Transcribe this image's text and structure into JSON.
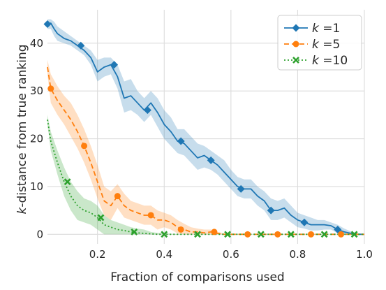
{
  "chart_data": {
    "type": "line",
    "xlabel": "Fraction of comparisons used",
    "ylabel_prefix": "k",
    "ylabel_suffix": "-distance from true ranking",
    "xlim": [
      0.05,
      1.0
    ],
    "ylim": [
      -2,
      47
    ],
    "x_ticks": [
      0.2,
      0.4,
      0.6,
      0.8,
      1.0
    ],
    "x_tick_labels": [
      "0.2",
      "0.4",
      "0.6",
      "0.8",
      "1.0"
    ],
    "y_ticks": [
      0,
      10,
      20,
      30,
      40
    ],
    "y_tick_labels": [
      "0",
      "10",
      "20",
      "30",
      "40"
    ],
    "grid": true,
    "legend_position": "top-right",
    "series": [
      {
        "name": "k =1",
        "legend_k": "k",
        "legend_rest": " =1",
        "color": "#1f77b4",
        "line_style": "solid",
        "marker": "diamond",
        "x": [
          0.05,
          0.06,
          0.07,
          0.08,
          0.1,
          0.12,
          0.14,
          0.16,
          0.18,
          0.2,
          0.22,
          0.24,
          0.26,
          0.28,
          0.3,
          0.32,
          0.34,
          0.36,
          0.38,
          0.4,
          0.42,
          0.44,
          0.46,
          0.48,
          0.5,
          0.52,
          0.54,
          0.56,
          0.58,
          0.6,
          0.62,
          0.64,
          0.66,
          0.68,
          0.7,
          0.72,
          0.74,
          0.76,
          0.78,
          0.8,
          0.82,
          0.84,
          0.86,
          0.88,
          0.9,
          0.92,
          0.94,
          0.96,
          0.98,
          1.0
        ],
        "y": [
          44,
          44.2,
          43,
          42,
          41,
          40.5,
          39.5,
          38.5,
          37,
          34,
          35,
          35.5,
          33,
          28.5,
          29,
          27.5,
          26,
          27.5,
          25.5,
          23,
          21.5,
          19.5,
          19,
          17.5,
          16,
          16.5,
          15.5,
          14.5,
          13,
          11.5,
          10,
          9.5,
          9.5,
          8,
          7,
          5,
          5,
          5.5,
          4,
          3,
          2.5,
          2,
          2,
          2,
          1.8,
          1,
          0.5,
          0.2,
          0,
          0
        ],
        "band_upper": [
          45,
          45,
          44.5,
          43.5,
          42.5,
          41.5,
          40.5,
          39.5,
          38.5,
          36.5,
          37,
          37,
          35.5,
          32,
          32.5,
          30,
          28.5,
          30,
          28.5,
          26,
          24.5,
          22,
          22,
          20.5,
          19,
          18.5,
          17.5,
          16.5,
          15.5,
          13.5,
          12,
          11.5,
          11.5,
          10,
          9,
          7.5,
          7,
          7.5,
          6,
          4.5,
          4,
          3.5,
          3,
          3,
          2.5,
          2,
          1.2,
          0.6,
          0.2,
          0.1
        ],
        "band_lower": [
          43,
          43,
          41.5,
          40.5,
          40,
          39.5,
          38.5,
          37.5,
          35.5,
          32,
          33,
          33.5,
          30.5,
          25.5,
          26,
          25,
          23.5,
          25,
          22.5,
          20,
          18.5,
          17,
          16.5,
          15,
          13.5,
          14,
          13.5,
          12.5,
          11,
          9.5,
          8,
          7.5,
          7.5,
          6,
          5,
          3,
          3,
          3.5,
          2.5,
          1.5,
          1.2,
          0.8,
          0.8,
          1,
          1,
          0.2,
          0,
          0,
          0,
          0
        ],
        "marker_x": [
          0.05,
          0.15,
          0.25,
          0.35,
          0.45,
          0.54,
          0.63,
          0.72,
          0.82,
          0.92
        ],
        "marker_y": [
          44,
          39.5,
          35.5,
          26,
          19.5,
          15.5,
          9.5,
          5,
          2.5,
          1
        ]
      },
      {
        "name": "k =5",
        "legend_k": "k",
        "legend_rest": " =5",
        "color": "#ff7f0e",
        "line_style": "dashed",
        "marker": "circle",
        "x": [
          0.05,
          0.06,
          0.08,
          0.1,
          0.12,
          0.14,
          0.16,
          0.18,
          0.2,
          0.22,
          0.24,
          0.26,
          0.28,
          0.3,
          0.32,
          0.34,
          0.36,
          0.38,
          0.4,
          0.42,
          0.44,
          0.46,
          0.48,
          0.5,
          0.52,
          0.54,
          0.56,
          0.58,
          0.6,
          0.65,
          0.7,
          0.75,
          0.8,
          0.85,
          0.9,
          0.95,
          1.0
        ],
        "y": [
          35,
          30.5,
          28,
          26,
          24,
          21.5,
          18.5,
          15,
          11,
          7,
          6,
          8,
          6,
          5,
          4.5,
          4,
          4,
          3,
          3,
          2.5,
          1.5,
          1,
          0.5,
          0.5,
          0.3,
          0.5,
          0.2,
          0,
          0,
          0,
          0,
          0,
          0,
          0,
          0,
          0,
          0
        ],
        "band_upper": [
          36.5,
          33.5,
          31,
          29,
          27.5,
          25,
          22,
          18.5,
          14.5,
          10,
          9,
          10.5,
          8.5,
          7,
          6.5,
          6,
          6,
          5,
          4.5,
          4,
          3,
          2.2,
          1.5,
          1.2,
          1,
          1,
          0.5,
          0.2,
          0.1,
          0,
          0,
          0,
          0,
          0,
          0,
          0,
          0
        ],
        "band_lower": [
          33.5,
          27.5,
          25,
          23,
          20.5,
          18,
          15,
          11.5,
          7.5,
          4,
          3,
          5.5,
          3.5,
          3,
          2.5,
          2,
          2,
          1,
          1.5,
          1,
          0.2,
          0,
          0,
          0,
          0,
          0,
          0,
          0,
          0,
          0,
          0,
          0,
          0,
          0,
          0,
          0,
          0
        ],
        "marker_x": [
          0.06,
          0.16,
          0.26,
          0.36,
          0.45,
          0.55,
          0.65,
          0.74,
          0.84,
          0.93
        ],
        "marker_y": [
          30.5,
          18.5,
          8,
          4,
          1,
          0.5,
          0,
          0,
          0,
          0
        ]
      },
      {
        "name": "k =10",
        "legend_k": "k",
        "legend_rest": " =10",
        "color": "#2ca02c",
        "line_style": "dotted",
        "marker": "x",
        "x": [
          0.05,
          0.06,
          0.08,
          0.1,
          0.12,
          0.14,
          0.16,
          0.18,
          0.2,
          0.22,
          0.24,
          0.26,
          0.28,
          0.3,
          0.32,
          0.34,
          0.36,
          0.38,
          0.4,
          0.45,
          0.5,
          0.6,
          0.7,
          0.8,
          0.9,
          1.0
        ],
        "y": [
          24,
          19.5,
          15,
          11,
          8,
          6,
          5,
          4.5,
          3.5,
          2,
          1.5,
          1,
          0.8,
          0.5,
          0.3,
          0.2,
          0.1,
          0,
          0,
          0,
          0,
          0,
          0,
          0,
          0,
          0
        ],
        "band_upper": [
          25,
          21.5,
          17.5,
          14,
          11,
          9,
          7.5,
          7,
          6,
          4,
          3,
          2.5,
          2,
          1.5,
          1.2,
          1,
          0.5,
          0.3,
          0.2,
          0,
          0,
          0,
          0,
          0,
          0,
          0
        ],
        "band_lower": [
          23,
          17.5,
          12.5,
          8,
          5,
          3,
          2.5,
          2,
          1,
          0,
          0,
          0,
          0,
          0,
          0,
          0,
          0,
          0,
          0,
          0,
          0,
          0,
          0,
          0,
          0,
          0
        ],
        "marker_x": [
          0.11,
          0.21,
          0.31,
          0.4,
          0.5,
          0.59,
          0.69,
          0.78,
          0.88,
          0.97
        ],
        "marker_y": [
          11,
          3.5,
          0.5,
          0,
          0,
          0,
          0,
          0,
          0,
          0
        ]
      }
    ]
  }
}
